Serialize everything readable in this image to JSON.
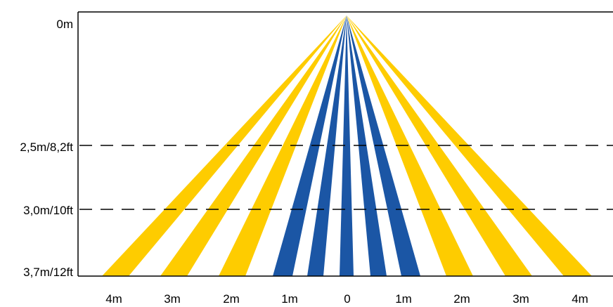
{
  "diagram": {
    "y_labels": [
      "0m",
      "2,5m/8,2ft",
      "3,0m/10ft",
      "3,7m/12ft"
    ],
    "x_labels": [
      "4m",
      "3m",
      "2m",
      "1m",
      "0",
      "1m",
      "2m",
      "3m",
      "4m"
    ],
    "beams": [
      {
        "zone": "outer",
        "color": "#fecc00"
      },
      {
        "zone": "outer",
        "color": "#fecc00"
      },
      {
        "zone": "outer",
        "color": "#fecc00"
      },
      {
        "zone": "inner",
        "color": "#1b56a5"
      },
      {
        "zone": "inner",
        "color": "#1b56a5"
      },
      {
        "zone": "inner",
        "color": "#1b56a5"
      },
      {
        "zone": "inner",
        "color": "#1b56a5"
      },
      {
        "zone": "inner",
        "color": "#1b56a5"
      },
      {
        "zone": "outer",
        "color": "#fecc00"
      },
      {
        "zone": "outer",
        "color": "#fecc00"
      },
      {
        "zone": "outer",
        "color": "#fecc00"
      }
    ]
  }
}
